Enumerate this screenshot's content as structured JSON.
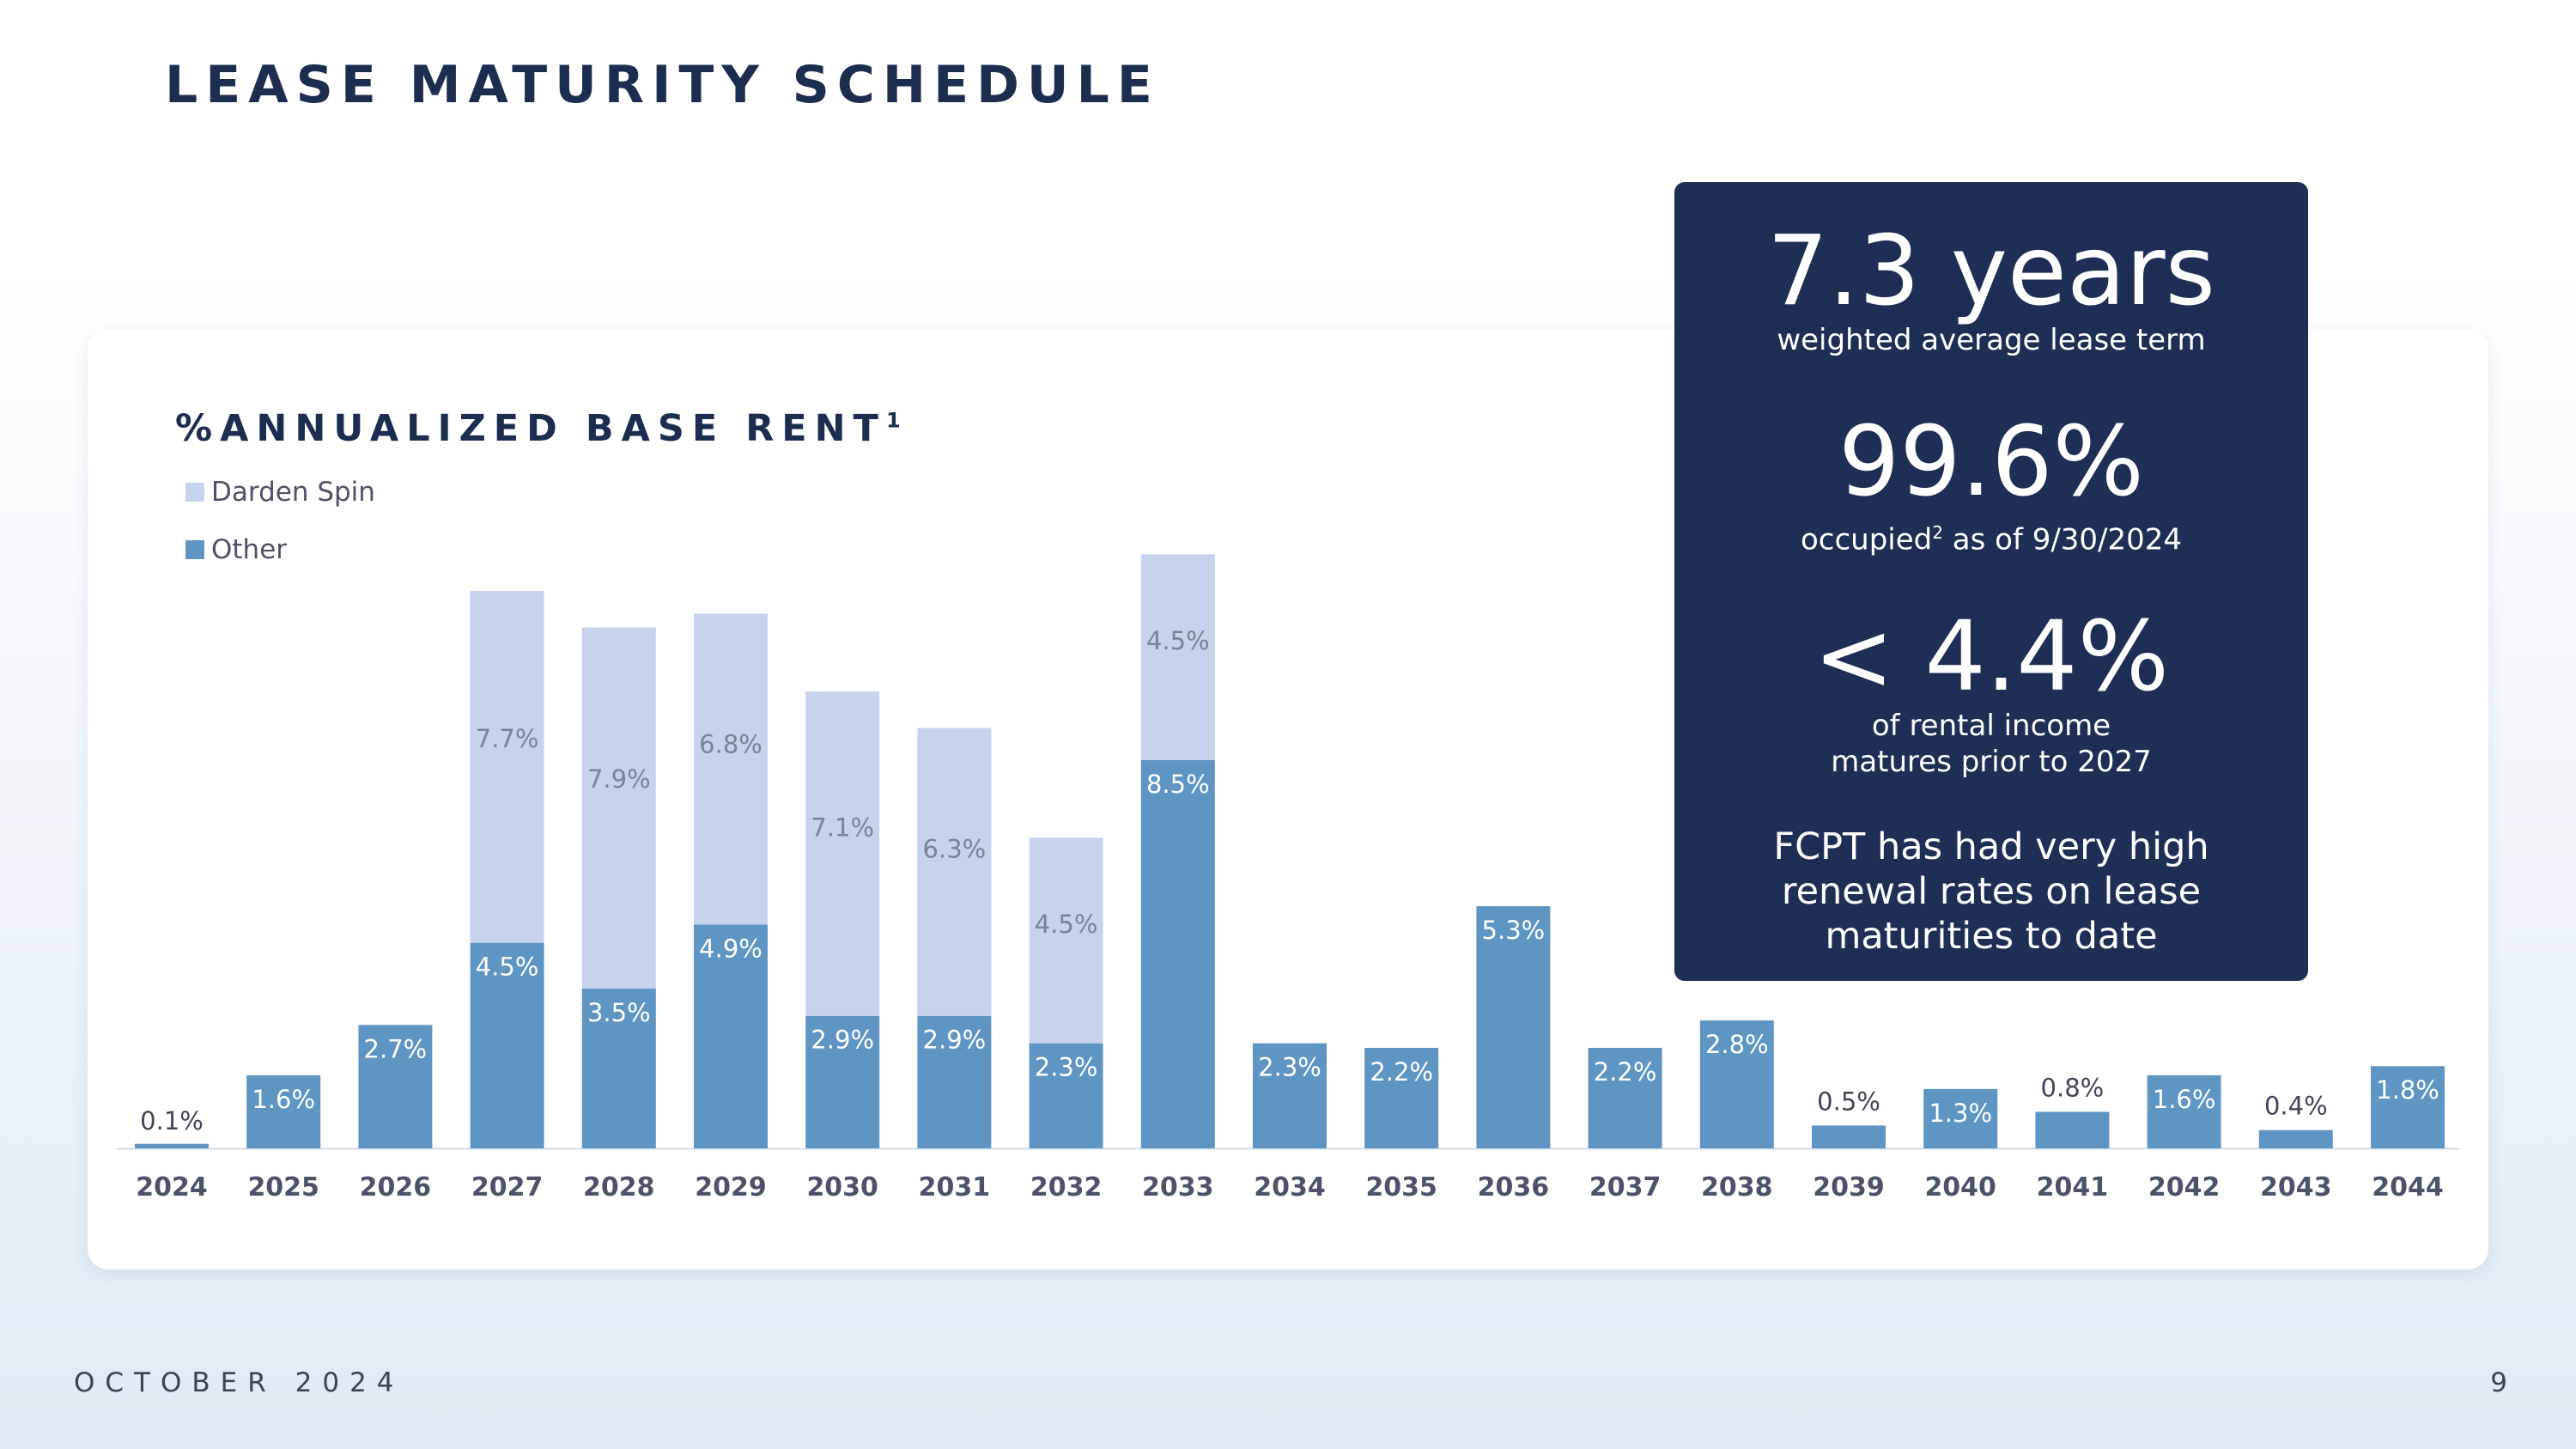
{
  "page": {
    "title": "LEASE MATURITY SCHEDULE",
    "footer_date": "OCTOBER 2024",
    "page_number": "9"
  },
  "colors": {
    "darden": "#c7d3ec",
    "other": "#5f95c3",
    "navy": "#1e2e55"
  },
  "panel": {
    "stat1_value": "7.3 years",
    "stat1_caption": "weighted average lease term",
    "stat2_value": "99.6%",
    "stat2_caption_pre": "occupied",
    "stat2_caption_sup": "2",
    "stat2_caption_post": " as of 9/30/2024",
    "stat3_value": "< 4.4%",
    "stat3_caption_line1": "of rental income",
    "stat3_caption_line2": "matures prior to 2027",
    "note_line1": "FCPT has had very high",
    "note_line2": "renewal rates on lease",
    "note_line3": "maturities to date"
  },
  "chart_data": {
    "type": "bar",
    "stacked": true,
    "title": "%ANNUALIZED BASE RENT",
    "title_sup": "1",
    "legend": [
      "Darden Spin",
      "Other"
    ],
    "legend_position": "top-left",
    "categories": [
      "2024",
      "2025",
      "2026",
      "2027",
      "2028",
      "2029",
      "2030",
      "2031",
      "2032",
      "2033",
      "2034",
      "2035",
      "2036",
      "2037",
      "2038",
      "2039",
      "2040",
      "2041",
      "2042",
      "2043",
      "2044"
    ],
    "series": [
      {
        "name": "Other",
        "color": "#5f95c3",
        "values": [
          0.1,
          1.6,
          2.7,
          4.5,
          3.5,
          4.9,
          2.9,
          2.9,
          2.3,
          8.5,
          2.3,
          2.2,
          5.3,
          2.2,
          2.8,
          0.5,
          1.3,
          0.8,
          1.6,
          0.4,
          1.8
        ],
        "labels": [
          "0.1%",
          "1.6%",
          "2.7%",
          "4.5%",
          "3.5%",
          "4.9%",
          "2.9%",
          "2.9%",
          "2.3%",
          "8.5%",
          "2.3%",
          "2.2%",
          "5.3%",
          "2.2%",
          "2.8%",
          "0.5%",
          "1.3%",
          "0.8%",
          "1.6%",
          "0.4%",
          "1.8%"
        ]
      },
      {
        "name": "Darden Spin",
        "color": "#c7d3ec",
        "values": [
          0,
          0,
          0,
          7.7,
          7.9,
          6.8,
          7.1,
          6.3,
          4.5,
          4.5,
          0,
          0,
          0,
          0,
          0,
          0,
          0,
          0,
          0,
          0,
          0
        ],
        "labels": [
          "",
          "",
          "",
          "7.7%",
          "7.9%",
          "6.8%",
          "7.1%",
          "6.3%",
          "4.5%",
          "4.5%",
          "",
          "",
          "",
          "",
          "",
          "",
          "",
          "",
          "",
          "",
          ""
        ]
      }
    ],
    "ylim": [
      0,
      13.5
    ],
    "grid": false
  }
}
